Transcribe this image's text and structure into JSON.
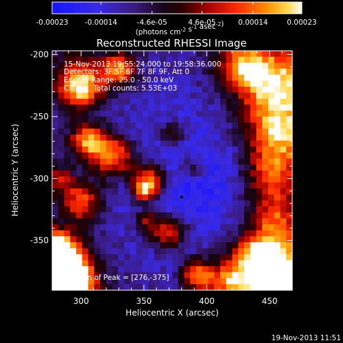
{
  "colorbar": {
    "tick_labels": [
      "-0.00023",
      "-0.00014",
      "-4.6e-05",
      "4.6e-05",
      "0.00014",
      "0.00023"
    ],
    "tick_values": [
      -0.00023,
      -0.00014,
      -4.6e-05,
      4.6e-05,
      0.00014,
      0.00023
    ],
    "range": [
      -0.00023,
      0.00023
    ],
    "units_label": "(photons cm^-2 s^-1 asec^-2)",
    "colormap": "blue-black-red-yellow-white"
  },
  "chart_data": {
    "type": "heatmap",
    "title": "Reconstructed RHESSI Image",
    "xlabel": "Heliocentric X (arcsec)",
    "ylabel": "Heliocentric Y (arcsec)",
    "xlim": [
      277,
      468
    ],
    "ylim": [
      -390,
      -197
    ],
    "x_ticks": [
      300,
      350,
      400,
      450
    ],
    "x_tick_labels": [
      "300",
      "350",
      "400",
      "450"
    ],
    "y_ticks": [
      -200,
      -250,
      -300,
      -350
    ],
    "y_tick_labels": [
      "-200",
      "-250",
      "-300",
      "-350"
    ],
    "peak": [
      276,
      -375
    ],
    "marker": [
      380,
      -315
    ],
    "annotations": {
      "time_range": "15-Nov-2013 19:55:24.000 to 19:58:36.000",
      "detectors": "Detectors: 3F 5F 6F 7F 8F 9F, Att 0",
      "energy": "Energy Range: 25.0 - 50.0 keV",
      "clean": "Clean    Total counts: 5.53E+03",
      "peak_text": "Position of Peak = [276,-375]"
    }
  },
  "footer": {
    "timestamp": "19-Nov-2013 11:51"
  }
}
